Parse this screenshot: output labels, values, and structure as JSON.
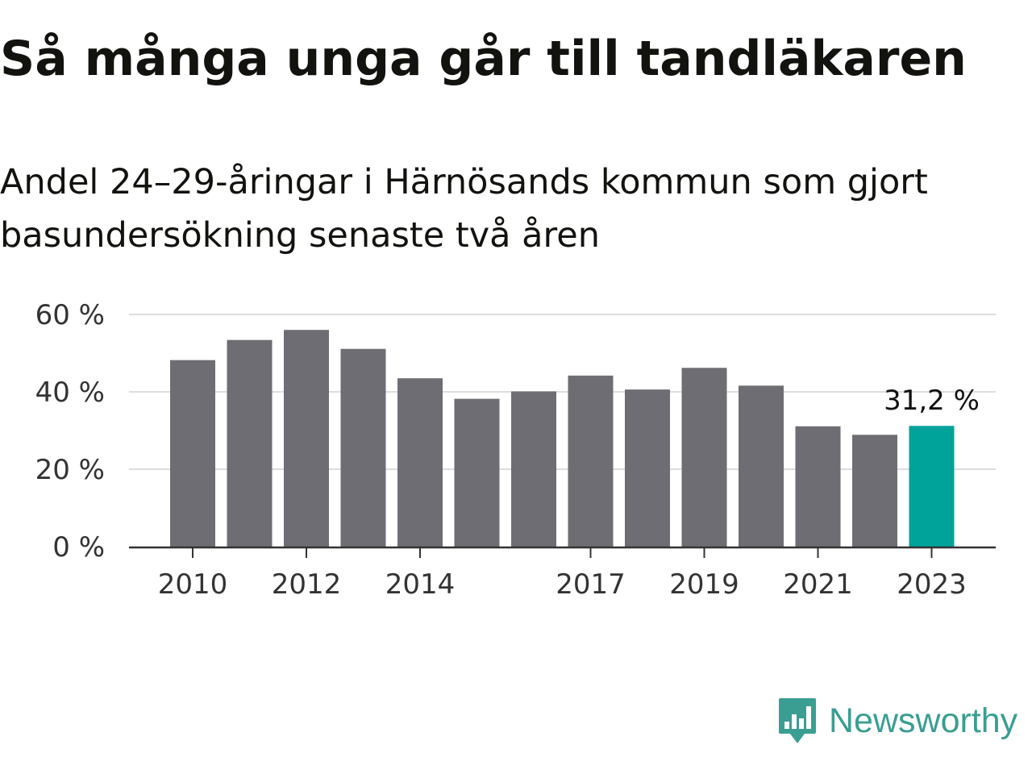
{
  "chart_data": {
    "type": "bar",
    "title": "Så många unga går till tandläkaren",
    "subtitle": "Andel 24–29-åringar i Härnösands kommun som gjort basundersökning senaste två åren",
    "categories": [
      "2010",
      "2011",
      "2012",
      "2013",
      "2014",
      "2015",
      "2016",
      "2017",
      "2018",
      "2019",
      "2020",
      "2021",
      "2022",
      "2023"
    ],
    "values": [
      48.2,
      53.4,
      56.0,
      51.1,
      43.5,
      38.2,
      40.1,
      44.2,
      40.6,
      46.2,
      41.6,
      31.1,
      28.9,
      31.2
    ],
    "xticks": [
      "2010",
      "2012",
      "2014",
      "2017",
      "2019",
      "2021",
      "2023"
    ],
    "yticks": [
      "0 %",
      "20 %",
      "40 %",
      "60 %"
    ],
    "ylim": [
      0,
      60
    ],
    "grid": true,
    "highlight": {
      "category": "2023",
      "label": "31,2 %"
    },
    "colors": {
      "bar": "#6e6d73",
      "highlight": "#00a39a",
      "grid": "#dddddd",
      "axis": "#333333"
    }
  },
  "branding": {
    "name": "Newsworthy",
    "icon": "newsworthy-chart-bubble-icon",
    "color": "#3a9e92"
  }
}
